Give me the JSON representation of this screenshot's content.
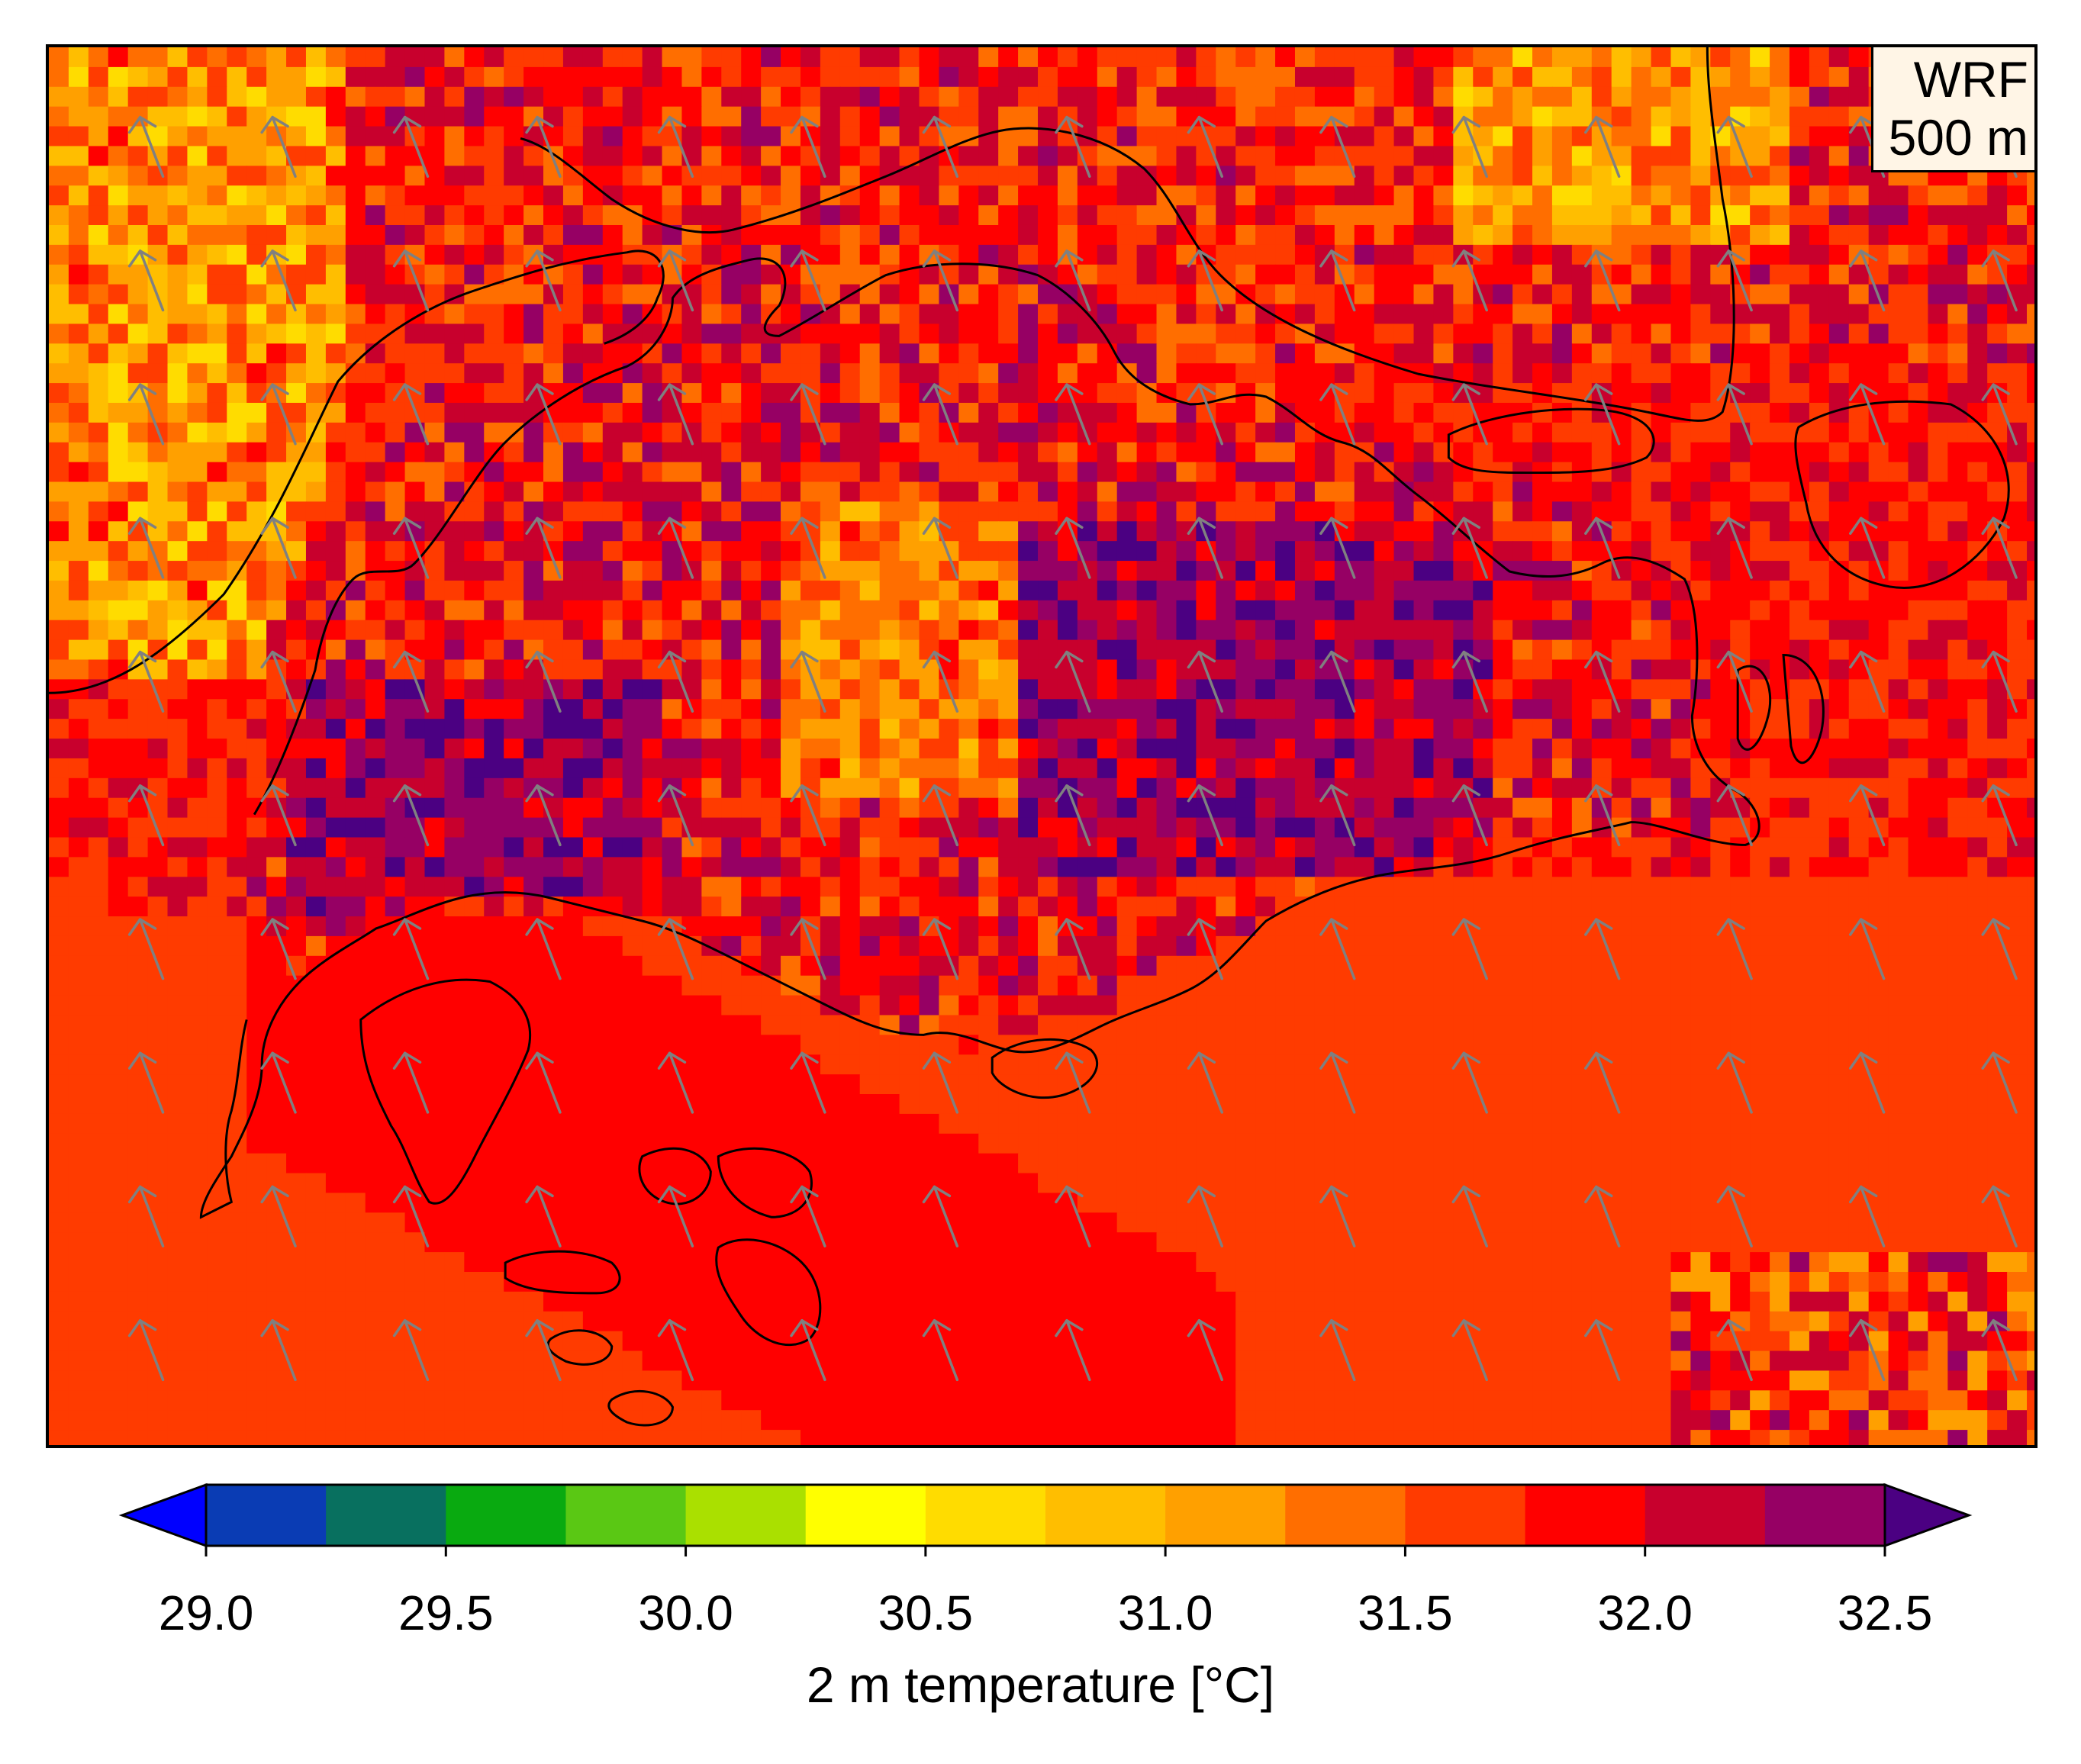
{
  "map": {
    "label_line1": "WRF",
    "label_line2": "500 m",
    "background_color": "#ff3b00",
    "wind_vector_color": "#808080",
    "coastline_color": "#000000"
  },
  "colorbar": {
    "title": "2 m temperature [°C]",
    "min": 29.0,
    "max": 32.5,
    "step": 0.25,
    "extend": "both",
    "under_color": "#0000ff",
    "over_color": "#4b0082",
    "colors": [
      "#0a3cb4",
      "#08705f",
      "#09aa10",
      "#5ac814",
      "#aae000",
      "#ffff00",
      "#ffdc00",
      "#ffbe00",
      "#ffa000",
      "#ff6e00",
      "#ff3b00",
      "#ff0000",
      "#c8002d",
      "#960064"
    ],
    "ticks": [
      "29.0",
      "29.5",
      "30.0",
      "30.5",
      "31.0",
      "31.5",
      "32.0",
      "32.5"
    ]
  }
}
